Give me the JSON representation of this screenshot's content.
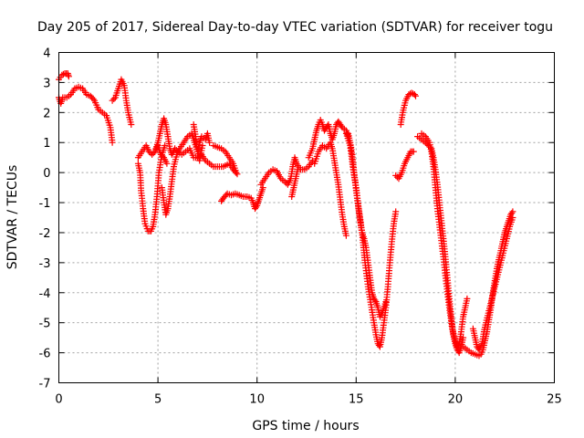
{
  "chart_data": {
    "type": "scatter",
    "title": "Day 205 of 2017, Sidereal Day-to-day VTEC variation (SDTVAR) for receiver togu",
    "xlabel": "GPS time / hours",
    "ylabel": "SDTVAR / TECUs",
    "xlim": [
      0,
      25
    ],
    "ylim": [
      -7,
      4
    ],
    "x_ticks": [
      0,
      5,
      10,
      15,
      20,
      25
    ],
    "y_ticks": [
      -7,
      -6,
      -5,
      -4,
      -3,
      -2,
      -1,
      0,
      1,
      2,
      3,
      4
    ],
    "grid": true,
    "marker": "plus",
    "color": "#ff0000",
    "traces": [
      [
        [
          0.0,
          2.5
        ],
        [
          0.1,
          2.3
        ],
        [
          0.2,
          2.5
        ],
        [
          0.4,
          2.5
        ],
        [
          0.6,
          2.6
        ],
        [
          0.8,
          2.8
        ],
        [
          1.0,
          2.85
        ],
        [
          1.2,
          2.8
        ],
        [
          1.4,
          2.6
        ],
        [
          1.6,
          2.55
        ],
        [
          1.8,
          2.4
        ],
        [
          2.0,
          2.1
        ],
        [
          2.2,
          2.0
        ],
        [
          2.4,
          1.9
        ],
        [
          2.6,
          1.5
        ],
        [
          2.7,
          1.0
        ]
      ],
      [
        [
          0.0,
          3.1
        ],
        [
          0.15,
          3.25
        ],
        [
          0.3,
          3.3
        ],
        [
          0.45,
          3.3
        ],
        [
          0.5,
          3.2
        ]
      ],
      [
        [
          2.7,
          2.4
        ],
        [
          2.85,
          2.5
        ],
        [
          3.0,
          2.8
        ],
        [
          3.15,
          3.1
        ],
        [
          3.3,
          2.9
        ],
        [
          3.4,
          2.4
        ],
        [
          3.5,
          2.0
        ],
        [
          3.65,
          1.6
        ]
      ],
      [
        [
          4.0,
          0.3
        ],
        [
          4.1,
          0.0
        ],
        [
          4.15,
          -0.6
        ],
        [
          4.25,
          -1.2
        ],
        [
          4.35,
          -1.7
        ],
        [
          4.5,
          -1.95
        ],
        [
          4.65,
          -1.95
        ],
        [
          4.75,
          -1.8
        ],
        [
          4.85,
          -1.4
        ],
        [
          4.95,
          -0.8
        ],
        [
          5.05,
          0.0
        ],
        [
          5.2,
          0.6
        ],
        [
          5.35,
          0.9
        ]
      ],
      [
        [
          4.0,
          0.5
        ],
        [
          4.2,
          0.7
        ],
        [
          4.4,
          0.9
        ],
        [
          4.55,
          0.7
        ],
        [
          4.7,
          0.6
        ],
        [
          4.85,
          0.7
        ],
        [
          5.0,
          0.9
        ],
        [
          5.15,
          0.6
        ],
        [
          5.3,
          0.5
        ],
        [
          5.45,
          0.3
        ]
      ],
      [
        [
          4.9,
          0.8
        ],
        [
          5.0,
          1.0
        ],
        [
          5.1,
          1.3
        ],
        [
          5.2,
          1.6
        ],
        [
          5.3,
          1.8
        ],
        [
          5.4,
          1.6
        ],
        [
          5.5,
          1.2
        ],
        [
          5.6,
          0.8
        ],
        [
          5.7,
          0.6
        ],
        [
          5.85,
          0.8
        ],
        [
          6.0,
          0.7
        ],
        [
          6.2,
          0.6
        ],
        [
          6.4,
          0.7
        ],
        [
          6.6,
          0.8
        ],
        [
          6.8,
          0.5
        ],
        [
          7.0,
          0.5
        ],
        [
          7.2,
          0.6
        ],
        [
          7.4,
          0.4
        ],
        [
          7.6,
          0.3
        ],
        [
          7.8,
          0.2
        ],
        [
          8.0,
          0.2
        ],
        [
          8.3,
          0.2
        ],
        [
          8.6,
          0.3
        ],
        [
          8.8,
          0.1
        ],
        [
          9.0,
          -0.05
        ]
      ],
      [
        [
          5.2,
          -0.5
        ],
        [
          5.3,
          -1.0
        ],
        [
          5.4,
          -1.4
        ],
        [
          5.5,
          -1.2
        ],
        [
          5.6,
          -0.8
        ],
        [
          5.7,
          -0.3
        ],
        [
          5.8,
          0.2
        ],
        [
          5.95,
          0.6
        ],
        [
          6.1,
          0.8
        ],
        [
          6.3,
          1.0
        ],
        [
          6.5,
          1.2
        ],
        [
          6.7,
          1.3
        ],
        [
          6.85,
          1.0
        ],
        [
          7.0,
          0.7
        ],
        [
          7.1,
          1.0
        ],
        [
          7.2,
          1.2
        ],
        [
          7.4,
          1.1
        ],
        [
          7.5,
          1.3
        ],
        [
          7.6,
          1.0
        ]
      ],
      [
        [
          6.8,
          1.6
        ],
        [
          6.9,
          1.2
        ],
        [
          7.0,
          0.7
        ],
        [
          7.1,
          0.4
        ],
        [
          7.25,
          0.9
        ]
      ],
      [
        [
          7.8,
          0.9
        ],
        [
          8.0,
          0.85
        ],
        [
          8.2,
          0.8
        ],
        [
          8.4,
          0.7
        ],
        [
          8.6,
          0.5
        ],
        [
          8.8,
          0.3
        ],
        [
          8.95,
          0.0
        ]
      ],
      [
        [
          8.2,
          -0.95
        ],
        [
          8.3,
          -0.85
        ],
        [
          8.5,
          -0.7
        ],
        [
          8.7,
          -0.75
        ],
        [
          8.9,
          -0.7
        ],
        [
          9.1,
          -0.75
        ],
        [
          9.3,
          -0.8
        ],
        [
          9.5,
          -0.8
        ],
        [
          9.7,
          -0.85
        ],
        [
          9.8,
          -1.0
        ],
        [
          9.9,
          -1.2
        ],
        [
          10.0,
          -1.1
        ],
        [
          10.1,
          -0.9
        ],
        [
          10.2,
          -0.7
        ],
        [
          10.3,
          -0.5
        ]
      ],
      [
        [
          10.2,
          -0.4
        ],
        [
          10.4,
          -0.2
        ],
        [
          10.6,
          0.0
        ],
        [
          10.8,
          0.1
        ],
        [
          11.0,
          0.05
        ],
        [
          11.2,
          -0.2
        ],
        [
          11.4,
          -0.3
        ],
        [
          11.55,
          -0.4
        ],
        [
          11.7,
          -0.2
        ],
        [
          11.8,
          0.2
        ],
        [
          11.9,
          0.5
        ],
        [
          12.0,
          0.3
        ],
        [
          12.2,
          0.1
        ],
        [
          12.4,
          0.1
        ],
        [
          12.6,
          0.2
        ],
        [
          12.8,
          0.4
        ]
      ],
      [
        [
          11.75,
          -0.8
        ],
        [
          11.85,
          -0.5
        ],
        [
          11.95,
          -0.2
        ],
        [
          12.05,
          0.1
        ]
      ],
      [
        [
          12.6,
          0.5
        ],
        [
          12.8,
          0.8
        ],
        [
          12.9,
          1.1
        ],
        [
          13.0,
          1.4
        ],
        [
          13.1,
          1.6
        ],
        [
          13.2,
          1.75
        ],
        [
          13.3,
          1.6
        ],
        [
          13.4,
          1.4
        ],
        [
          13.5,
          1.5
        ],
        [
          13.6,
          1.6
        ],
        [
          13.7,
          1.3
        ],
        [
          13.8,
          1.1
        ],
        [
          13.9,
          1.3
        ],
        [
          14.0,
          1.6
        ],
        [
          14.1,
          1.7
        ],
        [
          14.2,
          1.6
        ],
        [
          14.3,
          1.5
        ],
        [
          14.4,
          1.45
        ],
        [
          14.5,
          1.4
        ],
        [
          14.6,
          1.2
        ]
      ],
      [
        [
          12.9,
          0.3
        ],
        [
          13.1,
          0.7
        ],
        [
          13.3,
          0.9
        ],
        [
          13.5,
          0.8
        ],
        [
          13.7,
          1.0
        ],
        [
          13.8,
          0.8
        ],
        [
          13.9,
          0.4
        ],
        [
          14.0,
          0.0
        ],
        [
          14.1,
          -0.4
        ],
        [
          14.2,
          -0.9
        ],
        [
          14.3,
          -1.4
        ],
        [
          14.4,
          -1.8
        ],
        [
          14.5,
          -2.1
        ]
      ],
      [
        [
          14.6,
          1.3
        ],
        [
          14.7,
          1.0
        ],
        [
          14.8,
          0.6
        ],
        [
          14.9,
          0.0
        ],
        [
          15.0,
          -0.6
        ],
        [
          15.1,
          -1.1
        ],
        [
          15.2,
          -1.6
        ],
        [
          15.3,
          -2.0
        ],
        [
          15.4,
          -2.2
        ],
        [
          15.5,
          -2.5
        ],
        [
          15.6,
          -3.0
        ],
        [
          15.7,
          -3.5
        ],
        [
          15.8,
          -4.0
        ],
        [
          15.9,
          -4.2
        ],
        [
          16.0,
          -4.3
        ],
        [
          16.1,
          -4.5
        ],
        [
          16.2,
          -4.8
        ],
        [
          16.35,
          -4.6
        ],
        [
          16.5,
          -4.3
        ]
      ],
      [
        [
          14.5,
          1.3
        ],
        [
          14.7,
          0.9
        ],
        [
          14.85,
          0.1
        ],
        [
          15.0,
          -0.5
        ],
        [
          15.15,
          -1.3
        ],
        [
          15.3,
          -2.0
        ],
        [
          15.45,
          -3.0
        ],
        [
          15.6,
          -3.8
        ],
        [
          15.75,
          -4.4
        ],
        [
          15.9,
          -5.0
        ],
        [
          16.0,
          -5.4
        ],
        [
          16.1,
          -5.7
        ],
        [
          16.2,
          -5.8
        ],
        [
          16.3,
          -5.5
        ],
        [
          16.4,
          -5.0
        ],
        [
          16.5,
          -4.5
        ],
        [
          16.6,
          -3.8
        ],
        [
          16.7,
          -3.0
        ],
        [
          16.8,
          -2.3
        ],
        [
          16.9,
          -1.7
        ],
        [
          17.0,
          -1.3
        ]
      ],
      [
        [
          17.0,
          -0.1
        ],
        [
          17.15,
          -0.2
        ],
        [
          17.3,
          0.0
        ],
        [
          17.45,
          0.3
        ],
        [
          17.6,
          0.5
        ],
        [
          17.75,
          0.7
        ],
        [
          17.9,
          0.7
        ]
      ],
      [
        [
          17.25,
          1.6
        ],
        [
          17.35,
          2.0
        ],
        [
          17.5,
          2.4
        ],
        [
          17.65,
          2.6
        ],
        [
          17.8,
          2.65
        ],
        [
          17.95,
          2.6
        ],
        [
          18.0,
          2.55
        ]
      ],
      [
        [
          18.1,
          1.2
        ],
        [
          18.3,
          1.1
        ],
        [
          18.5,
          1.0
        ],
        [
          18.65,
          0.9
        ],
        [
          18.8,
          0.8
        ],
        [
          18.9,
          0.5
        ],
        [
          19.0,
          0.1
        ],
        [
          19.1,
          -0.4
        ],
        [
          19.2,
          -1.0
        ],
        [
          19.3,
          -1.6
        ],
        [
          19.4,
          -2.2
        ],
        [
          19.5,
          -2.8
        ],
        [
          19.6,
          -3.5
        ],
        [
          19.7,
          -4.2
        ],
        [
          19.8,
          -4.8
        ],
        [
          19.9,
          -5.4
        ],
        [
          20.0,
          -5.7
        ],
        [
          20.1,
          -5.9
        ],
        [
          20.2,
          -6.0
        ],
        [
          20.3,
          -5.8
        ],
        [
          20.4,
          -5.5
        ]
      ],
      [
        [
          18.3,
          1.3
        ],
        [
          18.5,
          1.2
        ],
        [
          18.7,
          1.0
        ],
        [
          18.8,
          0.7
        ],
        [
          18.9,
          0.2
        ],
        [
          19.0,
          -0.5
        ],
        [
          19.1,
          -1.2
        ],
        [
          19.25,
          -2.0
        ],
        [
          19.4,
          -2.8
        ],
        [
          19.55,
          -3.7
        ],
        [
          19.7,
          -4.5
        ],
        [
          19.85,
          -5.2
        ],
        [
          20.0,
          -5.6
        ],
        [
          20.1,
          -5.8
        ],
        [
          20.2,
          -5.7
        ],
        [
          20.3,
          -5.3
        ],
        [
          20.4,
          -4.8
        ],
        [
          20.5,
          -4.5
        ],
        [
          20.6,
          -4.2
        ]
      ],
      [
        [
          20.4,
          -5.8
        ],
        [
          20.6,
          -5.9
        ],
        [
          20.8,
          -6.0
        ],
        [
          21.0,
          -6.05
        ],
        [
          21.2,
          -6.1
        ],
        [
          21.3,
          -6.05
        ],
        [
          21.4,
          -5.9
        ],
        [
          21.5,
          -5.6
        ],
        [
          21.6,
          -5.3
        ],
        [
          21.7,
          -4.9
        ],
        [
          21.8,
          -4.5
        ],
        [
          21.9,
          -4.0
        ],
        [
          22.0,
          -3.6
        ],
        [
          22.1,
          -3.2
        ],
        [
          22.2,
          -2.9
        ],
        [
          22.3,
          -2.6
        ],
        [
          22.4,
          -2.3
        ],
        [
          22.5,
          -2.0
        ],
        [
          22.6,
          -1.8
        ],
        [
          22.7,
          -1.6
        ],
        [
          22.8,
          -1.4
        ],
        [
          22.9,
          -1.3
        ]
      ],
      [
        [
          20.9,
          -5.2
        ],
        [
          21.0,
          -5.5
        ],
        [
          21.1,
          -5.8
        ],
        [
          21.2,
          -5.9
        ],
        [
          21.35,
          -5.7
        ],
        [
          21.45,
          -5.3
        ],
        [
          21.55,
          -5.0
        ],
        [
          21.7,
          -4.6
        ],
        [
          21.85,
          -4.2
        ],
        [
          22.0,
          -3.8
        ],
        [
          22.15,
          -3.4
        ],
        [
          22.3,
          -3.0
        ],
        [
          22.45,
          -2.6
        ],
        [
          22.6,
          -2.2
        ],
        [
          22.75,
          -1.8
        ],
        [
          22.9,
          -1.5
        ]
      ]
    ]
  }
}
